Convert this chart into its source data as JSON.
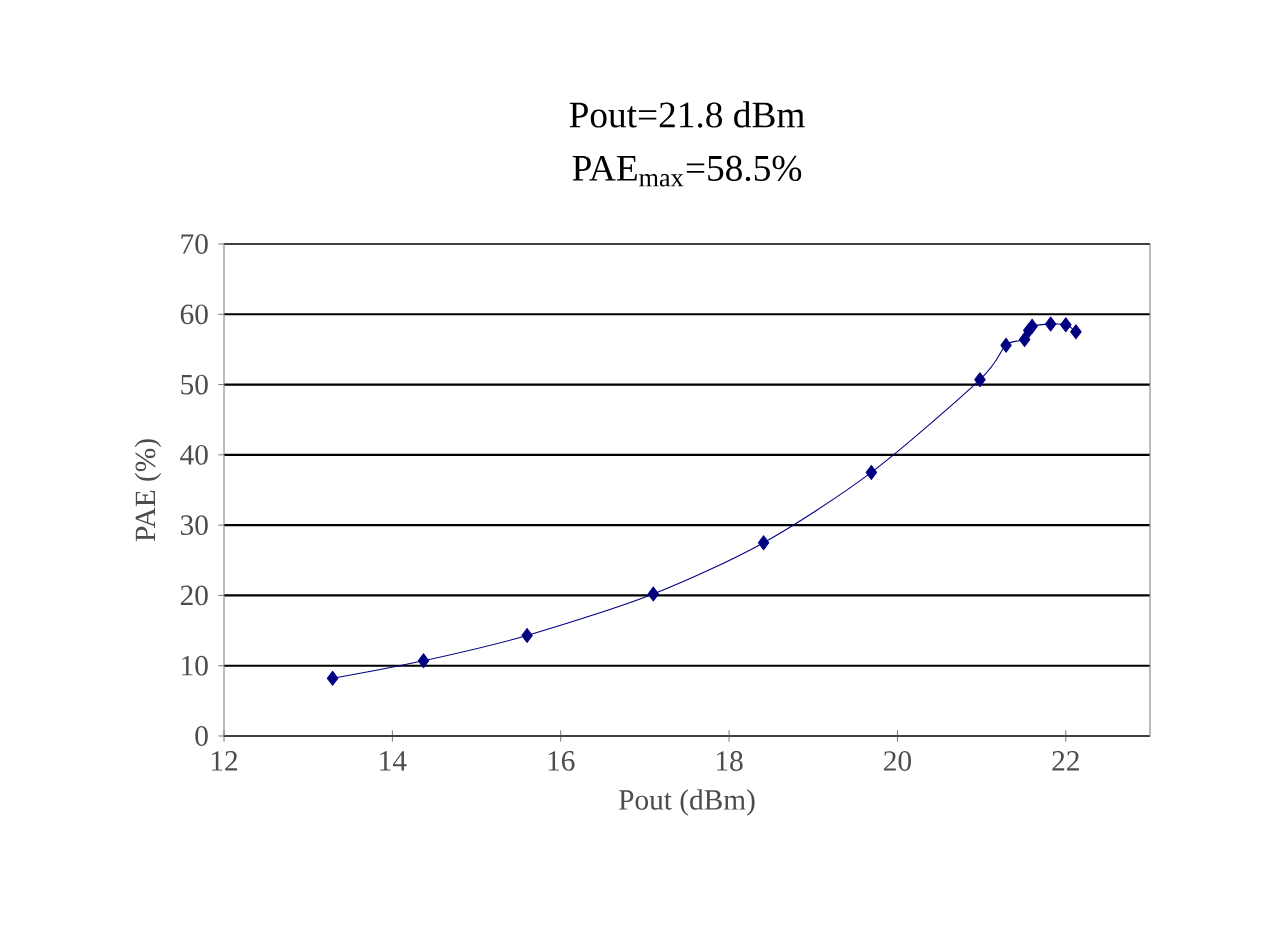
{
  "chart_data": {
    "type": "line",
    "title": "Pout=21.8 dBm",
    "subtitle": "PAE$_{max}$=58.5%",
    "xlabel": "Pout (dBm)",
    "ylabel": "PAE (%)",
    "xlim": [
      12,
      23
    ],
    "xticks": [
      12,
      14,
      16,
      18,
      20,
      22
    ],
    "ylim": [
      0,
      70
    ],
    "yticks": [
      0,
      10,
      20,
      30,
      40,
      50,
      60,
      70
    ],
    "grid": "y",
    "marker": "diamond",
    "line_style": "solid",
    "series": [
      {
        "color": "#000080",
        "x": [
          13.29,
          14.37,
          15.6,
          17.1,
          18.41,
          19.69,
          20.98,
          21.29,
          21.51,
          21.56,
          21.6,
          21.82,
          22.0,
          22.12
        ],
        "values": [
          8.2,
          10.7,
          14.3,
          20.2,
          27.5,
          37.5,
          50.7,
          55.6,
          56.4,
          57.7,
          58.3,
          58.6,
          58.5,
          57.5
        ]
      }
    ]
  }
}
